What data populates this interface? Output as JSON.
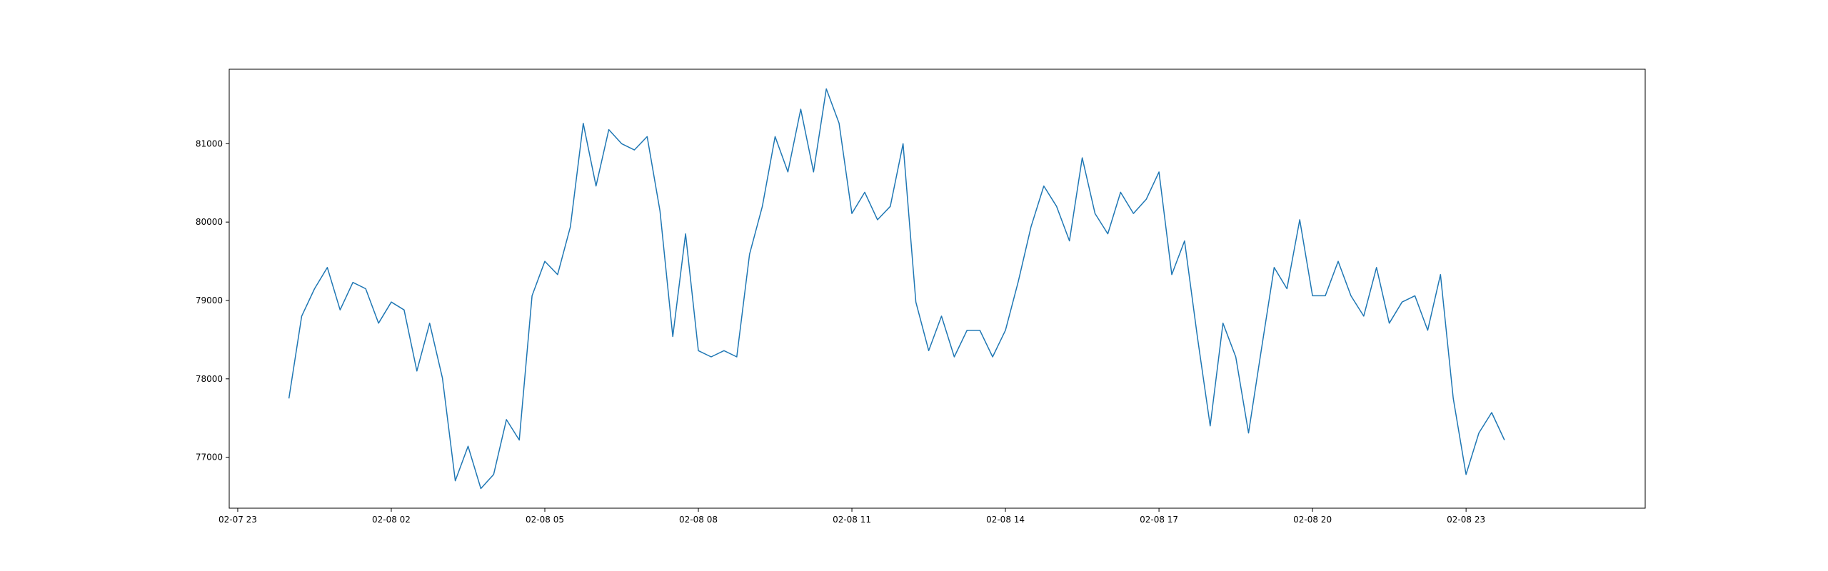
{
  "chart_data": {
    "type": "line",
    "title": "",
    "xlabel": "",
    "ylabel": "",
    "grid": false,
    "colors": {
      "line": "#1f77b4",
      "axes": "#000000",
      "background": "#ffffff"
    },
    "xlim": [
      "2025-02-07 22:50",
      "2025-02-09 02:30"
    ],
    "ylim": [
      76350,
      81950
    ],
    "x_ticks": [
      {
        "t": "2025-02-07 23:00",
        "label": "02-07 23"
      },
      {
        "t": "2025-02-08 02:00",
        "label": "02-08 02"
      },
      {
        "t": "2025-02-08 05:00",
        "label": "02-08 05"
      },
      {
        "t": "2025-02-08 08:00",
        "label": "02-08 08"
      },
      {
        "t": "2025-02-08 11:00",
        "label": "02-08 11"
      },
      {
        "t": "2025-02-08 14:00",
        "label": "02-08 14"
      },
      {
        "t": "2025-02-08 17:00",
        "label": "02-08 17"
      },
      {
        "t": "2025-02-08 20:00",
        "label": "02-08 20"
      },
      {
        "t": "2025-02-08 23:00",
        "label": "02-08 23"
      }
    ],
    "y_ticks": [
      {
        "v": 77000,
        "label": "77000"
      },
      {
        "v": 78000,
        "label": "78000"
      },
      {
        "v": 79000,
        "label": "79000"
      },
      {
        "v": 80000,
        "label": "80000"
      },
      {
        "v": 81000,
        "label": "81000"
      }
    ],
    "series": [
      {
        "x": [
          "2025-02-08 00:00",
          "2025-02-08 00:15",
          "2025-02-08 00:30",
          "2025-02-08 00:45",
          "2025-02-08 01:00",
          "2025-02-08 01:15",
          "2025-02-08 01:30",
          "2025-02-08 01:45",
          "2025-02-08 02:00",
          "2025-02-08 02:15",
          "2025-02-08 02:30",
          "2025-02-08 02:45",
          "2025-02-08 03:00",
          "2025-02-08 03:15",
          "2025-02-08 03:30",
          "2025-02-08 03:45",
          "2025-02-08 04:00",
          "2025-02-08 04:15",
          "2025-02-08 04:30",
          "2025-02-08 04:45",
          "2025-02-08 05:00",
          "2025-02-08 05:15",
          "2025-02-08 05:30",
          "2025-02-08 05:45",
          "2025-02-08 06:00",
          "2025-02-08 06:15",
          "2025-02-08 06:30",
          "2025-02-08 06:45",
          "2025-02-08 07:00",
          "2025-02-08 07:15",
          "2025-02-08 07:30",
          "2025-02-08 07:45",
          "2025-02-08 08:00",
          "2025-02-08 08:15",
          "2025-02-08 08:30",
          "2025-02-08 08:45",
          "2025-02-08 09:00",
          "2025-02-08 09:15",
          "2025-02-08 09:30",
          "2025-02-08 09:45",
          "2025-02-08 10:00",
          "2025-02-08 10:15",
          "2025-02-08 10:30",
          "2025-02-08 10:45",
          "2025-02-08 11:00",
          "2025-02-08 11:15",
          "2025-02-08 11:30",
          "2025-02-08 11:45",
          "2025-02-08 12:00",
          "2025-02-08 12:15",
          "2025-02-08 12:30",
          "2025-02-08 12:45",
          "2025-02-08 13:00",
          "2025-02-08 13:15",
          "2025-02-08 13:30",
          "2025-02-08 13:45",
          "2025-02-08 14:00",
          "2025-02-08 14:15",
          "2025-02-08 14:30",
          "2025-02-08 14:45",
          "2025-02-08 15:00",
          "2025-02-08 15:15",
          "2025-02-08 15:30",
          "2025-02-08 15:45",
          "2025-02-08 16:00",
          "2025-02-08 16:15",
          "2025-02-08 16:30",
          "2025-02-08 16:45",
          "2025-02-08 17:00",
          "2025-02-08 17:15",
          "2025-02-08 17:30",
          "2025-02-08 17:45",
          "2025-02-08 18:00",
          "2025-02-08 18:15",
          "2025-02-08 18:30",
          "2025-02-08 18:45",
          "2025-02-08 19:00",
          "2025-02-08 19:15",
          "2025-02-08 19:30",
          "2025-02-08 19:45",
          "2025-02-08 20:00",
          "2025-02-08 20:15",
          "2025-02-08 20:30",
          "2025-02-08 20:45",
          "2025-02-08 21:00",
          "2025-02-08 21:15",
          "2025-02-08 21:30",
          "2025-02-08 21:45",
          "2025-02-08 22:00",
          "2025-02-08 22:15",
          "2025-02-08 22:30",
          "2025-02-08 22:45",
          "2025-02-08 23:00",
          "2025-02-08 23:15",
          "2025-02-08 23:30",
          "2025-02-08 23:45"
        ],
        "y": [
          77750,
          78800,
          79150,
          79420,
          78880,
          79230,
          79150,
          78710,
          78980,
          78880,
          78100,
          78710,
          78010,
          76700,
          77140,
          76600,
          76780,
          77480,
          77220,
          79060,
          79500,
          79330,
          79940,
          81260,
          80460,
          81180,
          81000,
          80920,
          81090,
          80140,
          78540,
          79850,
          78360,
          78280,
          78360,
          78280,
          79590,
          80200,
          81090,
          80640,
          81440,
          80640,
          81700,
          81260,
          80110,
          80380,
          80030,
          80200,
          81000,
          78980,
          78360,
          78800,
          78280,
          78620,
          78620,
          78280,
          78620,
          79240,
          79940,
          80460,
          80200,
          79760,
          80820,
          80110,
          79850,
          80380,
          80110,
          80290,
          80640,
          79330,
          79760,
          78540,
          77400,
          78710,
          78280,
          77310,
          78370,
          79420,
          79150,
          80030,
          79060,
          79060,
          79500,
          79060,
          78800,
          79420,
          78710,
          78980,
          79060,
          78620,
          79330,
          77750,
          76780,
          77310,
          77570,
          77220
        ]
      }
    ]
  }
}
